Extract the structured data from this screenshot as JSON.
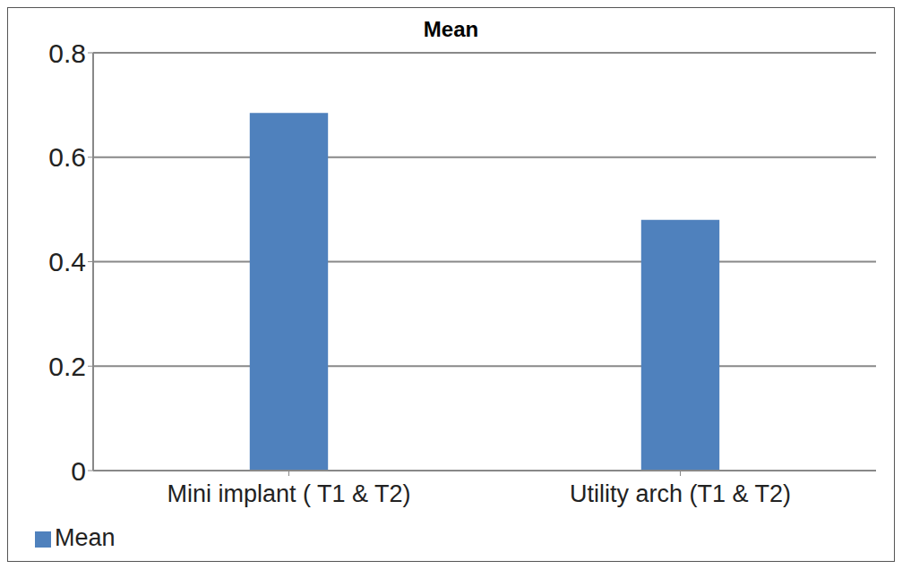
{
  "chart_data": {
    "type": "bar",
    "title": "Mean",
    "categories": [
      "Mini implant ( T1 & T2)",
      "Utility arch (T1 & T2)"
    ],
    "series": [
      {
        "name": "Mean",
        "color": "#4f81bd",
        "values": [
          0.685,
          0.48
        ]
      }
    ],
    "ylim": [
      0,
      0.8
    ],
    "yticks": [
      0,
      0.2,
      0.4,
      0.6,
      0.8
    ],
    "grid": true,
    "legend": "bottom left"
  }
}
